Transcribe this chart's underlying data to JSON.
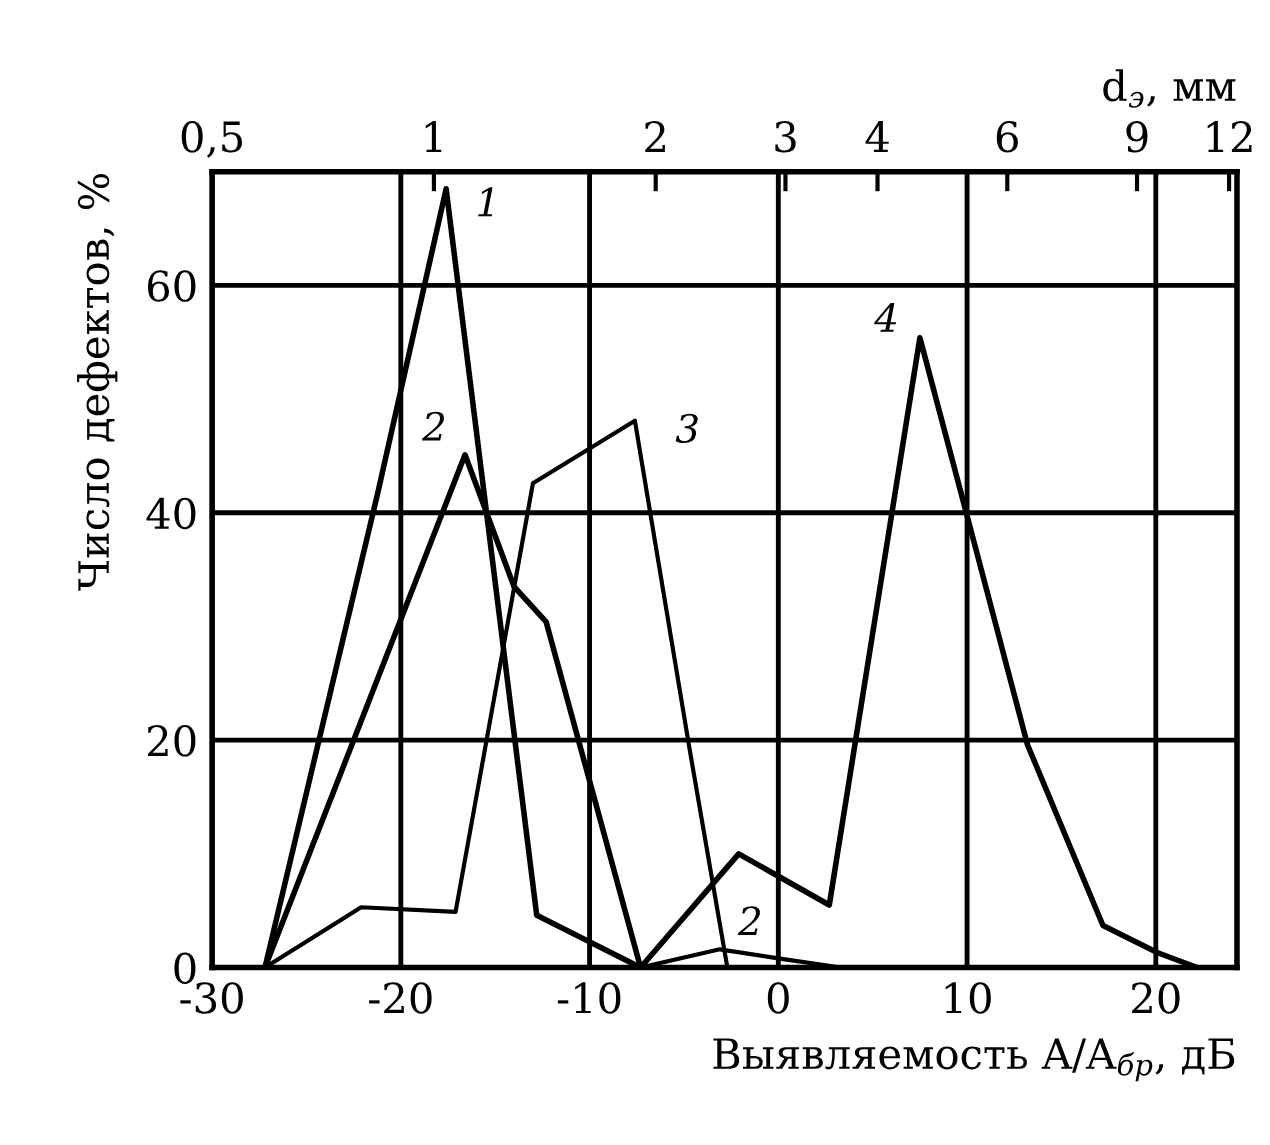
{
  "chart_data": {
    "type": "line",
    "xlabel": "Выявляемость A/A$_{бр}$, дБ",
    "ylabel": "Число дефектов, %",
    "x2label": "d$_{э}$, мм",
    "xlim": [
      -30,
      24.3
    ],
    "xticks": [
      -30,
      -20,
      -10,
      0,
      10,
      20
    ],
    "ylim": [
      0,
      70
    ],
    "yticks": [
      0,
      20,
      40,
      60
    ],
    "x2lim": [
      0.5,
      12.3
    ],
    "x2ticks": [
      {
        "value": 0.5,
        "label": "0,5"
      },
      1,
      2,
      3,
      4,
      6,
      9,
      12
    ],
    "log": "x2",
    "grid": true,
    "marker": "none",
    "line_style": "solid",
    "series": [
      {
        "name": "1",
        "color": "#000000",
        "x": [
          -27.2,
          -21.2,
          -17.6,
          -12.8,
          -7.3
        ],
        "values": [
          0,
          41.9,
          68.5,
          4.6,
          0
        ]
      },
      {
        "name": "2",
        "color": "#000000",
        "x": [
          -27.2,
          -16.6,
          -14,
          -12.3,
          -7.3
        ],
        "values": [
          0,
          45.1,
          33.5,
          30.4,
          0
        ]
      },
      {
        "name": "3",
        "color": "#000000",
        "x": [
          -27.2,
          -22.1,
          -17.1,
          -13,
          -7.6,
          -4.7,
          -2.7
        ],
        "values": [
          0,
          5.3,
          4.9,
          42.6,
          48.1,
          19.2,
          0
        ]
      },
      {
        "name": "4",
        "color": "#000000",
        "x": [
          -7.3,
          -2.1,
          2.7,
          7.5,
          9.8,
          13.2,
          17.2,
          20.1,
          22.2
        ],
        "values": [
          0,
          10,
          5.5,
          55.4,
          41,
          19.6,
          3.7,
          1.3,
          0
        ]
      },
      {
        "name": "2",
        "color": "#000000",
        "x": [
          -7.3,
          -3.1,
          0,
          3.3,
          22.2
        ],
        "values": [
          0,
          1.6,
          0.8,
          0,
          0
        ]
      }
    ]
  }
}
